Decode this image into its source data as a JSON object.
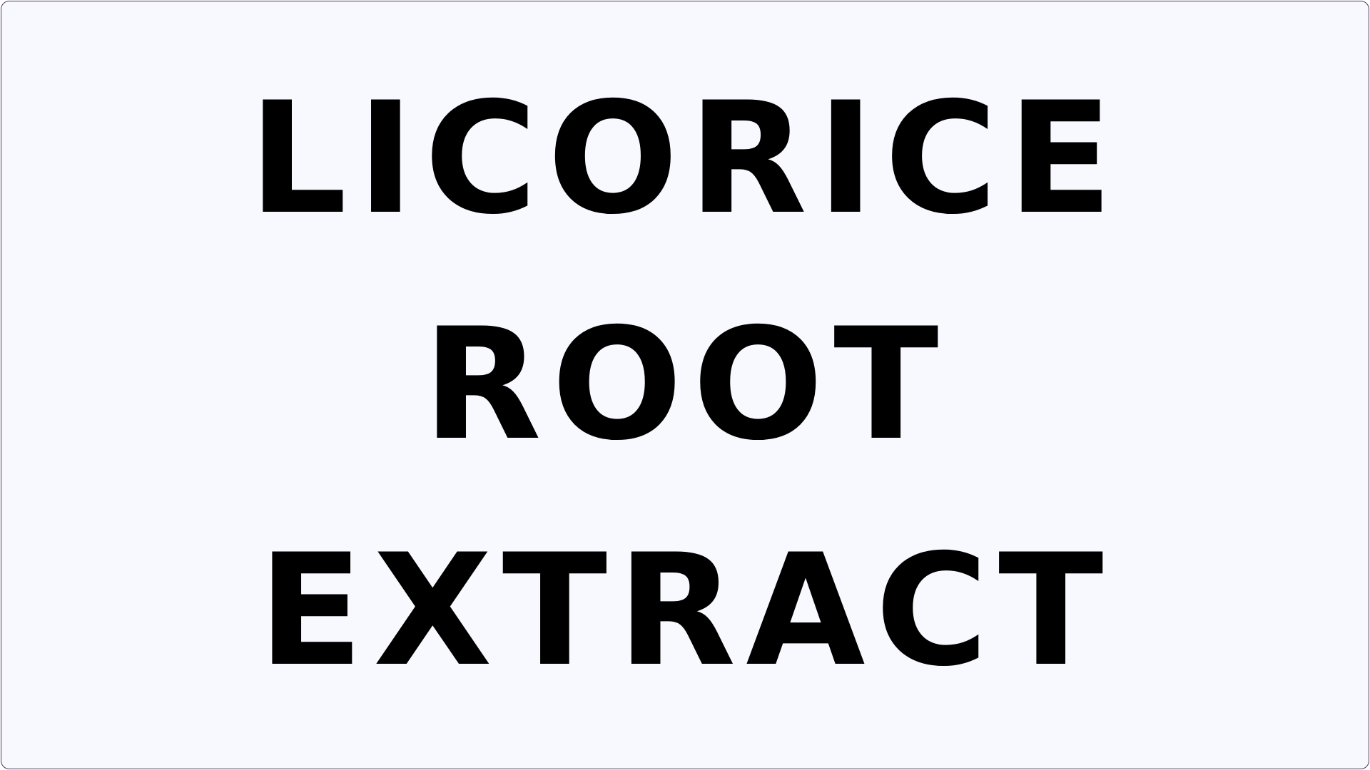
{
  "lines": [
    "LICORICE",
    "ROOT",
    "EXTRACT"
  ],
  "colors": {
    "background": "#f8f9fe",
    "border": "#4b3b5c",
    "text": "#000000"
  }
}
